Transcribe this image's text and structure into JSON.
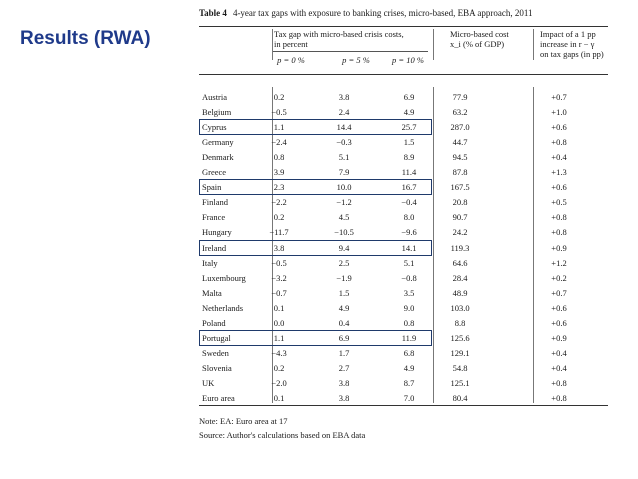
{
  "slide": {
    "title": "Results (RWA)"
  },
  "table": {
    "label": "Table 4",
    "caption": "4-year tax gaps with exposure to banking crises, micro-based, EBA approach, 2011",
    "header": {
      "group_line1": "Tax gap with micro-based crisis costs,",
      "group_line2": "in percent",
      "p0": "p = 0 %",
      "p5": "p = 5 %",
      "p10": "p = 10 %",
      "cost_line1": "Micro-based cost",
      "cost_line2": "x_i (% of GDP)",
      "impact_line1": "Impact of a 1 pp",
      "impact_line2": "increase in r − γ",
      "impact_line3": "on tax gaps (in pp)"
    },
    "rows": [
      {
        "country": "Austria",
        "p0": "0.2",
        "p5": "3.8",
        "p10": "6.9",
        "cost": "77.9",
        "impact": "+0.7"
      },
      {
        "country": "Belgium",
        "p0": "−0.5",
        "p5": "2.4",
        "p10": "4.9",
        "cost": "63.2",
        "impact": "+1.0"
      },
      {
        "country": "Cyprus",
        "p0": "1.1",
        "p5": "14.4",
        "p10": "25.7",
        "cost": "287.0",
        "impact": "+0.6"
      },
      {
        "country": "Germany",
        "p0": "−2.4",
        "p5": "−0.3",
        "p10": "1.5",
        "cost": "44.7",
        "impact": "+0.8"
      },
      {
        "country": "Denmark",
        "p0": "0.8",
        "p5": "5.1",
        "p10": "8.9",
        "cost": "94.5",
        "impact": "+0.4"
      },
      {
        "country": "Greece",
        "p0": "3.9",
        "p5": "7.9",
        "p10": "11.4",
        "cost": "87.8",
        "impact": "+1.3"
      },
      {
        "country": "Spain",
        "p0": "2.3",
        "p5": "10.0",
        "p10": "16.7",
        "cost": "167.5",
        "impact": "+0.6"
      },
      {
        "country": "Finland",
        "p0": "−2.2",
        "p5": "−1.2",
        "p10": "−0.4",
        "cost": "20.8",
        "impact": "+0.5"
      },
      {
        "country": "France",
        "p0": "0.2",
        "p5": "4.5",
        "p10": "8.0",
        "cost": "90.7",
        "impact": "+0.8"
      },
      {
        "country": "Hungary",
        "p0": "−11.7",
        "p5": "−10.5",
        "p10": "−9.6",
        "cost": "24.2",
        "impact": "+0.8"
      },
      {
        "country": "Ireland",
        "p0": "3.8",
        "p5": "9.4",
        "p10": "14.1",
        "cost": "119.3",
        "impact": "+0.9"
      },
      {
        "country": "Italy",
        "p0": "−0.5",
        "p5": "2.5",
        "p10": "5.1",
        "cost": "64.6",
        "impact": "+1.2"
      },
      {
        "country": "Luxembourg",
        "p0": "−3.2",
        "p5": "−1.9",
        "p10": "−0.8",
        "cost": "28.4",
        "impact": "+0.2"
      },
      {
        "country": "Malta",
        "p0": "−0.7",
        "p5": "1.5",
        "p10": "3.5",
        "cost": "48.9",
        "impact": "+0.7"
      },
      {
        "country": "Netherlands",
        "p0": "0.1",
        "p5": "4.9",
        "p10": "9.0",
        "cost": "103.0",
        "impact": "+0.6"
      },
      {
        "country": "Poland",
        "p0": "0.0",
        "p5": "0.4",
        "p10": "0.8",
        "cost": "8.8",
        "impact": "+0.6"
      },
      {
        "country": "Portugal",
        "p0": "1.1",
        "p5": "6.9",
        "p10": "11.9",
        "cost": "125.6",
        "impact": "+0.9"
      },
      {
        "country": "Sweden",
        "p0": "−4.3",
        "p5": "1.7",
        "p10": "6.8",
        "cost": "129.1",
        "impact": "+0.4"
      },
      {
        "country": "Slovenia",
        "p0": "0.2",
        "p5": "2.7",
        "p10": "4.9",
        "cost": "54.8",
        "impact": "+0.4"
      },
      {
        "country": "UK",
        "p0": "−2.0",
        "p5": "3.8",
        "p10": "8.7",
        "cost": "125.1",
        "impact": "+0.8"
      },
      {
        "country": "Euro area",
        "p0": "0.1",
        "p5": "3.8",
        "p10": "7.0",
        "cost": "80.4",
        "impact": "+0.8"
      }
    ],
    "note": "Note: EA: Euro area at 17",
    "source": "Source: Author's calculations based on EBA data"
  }
}
